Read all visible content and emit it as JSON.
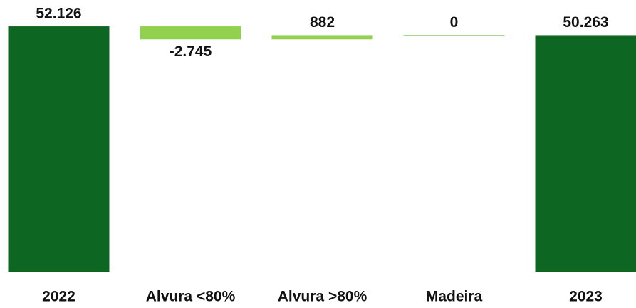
{
  "chart_data": {
    "type": "waterfall",
    "categories": [
      "2022",
      "Alvura <80%",
      "Alvura >80%",
      "Madeira",
      "2023"
    ],
    "values": [
      52126,
      -2745,
      882,
      0,
      50263
    ],
    "value_labels": [
      "52.126",
      "-2.745",
      "882",
      "0",
      "50.263"
    ],
    "totals": [
      true,
      false,
      false,
      false,
      true
    ],
    "colors": [
      "#0e6623",
      "#92d050",
      "#92d050",
      "#5cb82f",
      "#0e6623"
    ],
    "ylim": [
      0,
      55000
    ]
  }
}
